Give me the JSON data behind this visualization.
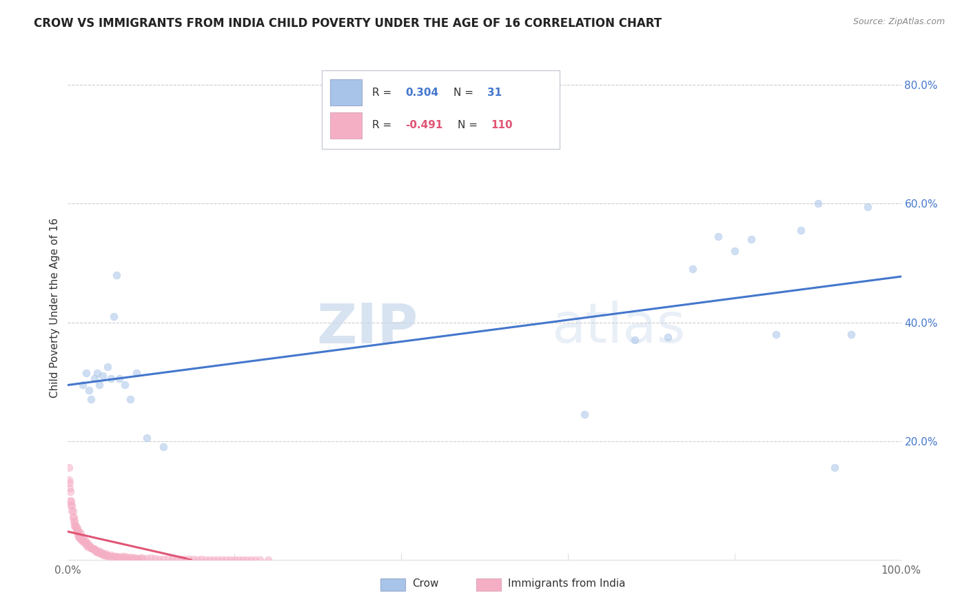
{
  "title": "CROW VS IMMIGRANTS FROM INDIA CHILD POVERTY UNDER THE AGE OF 16 CORRELATION CHART",
  "source": "Source: ZipAtlas.com",
  "ylabel": "Child Poverty Under the Age of 16",
  "xlim": [
    0.0,
    1.0
  ],
  "ylim": [
    0.0,
    0.85
  ],
  "crow_R": 0.304,
  "crow_N": 31,
  "india_R": -0.491,
  "india_N": 110,
  "crow_color": "#a8c4e8",
  "india_color": "#f5afc5",
  "crow_line_color": "#4477cc",
  "india_line_color": "#e05575",
  "grid_color": "#cccccc",
  "watermark_zip": "ZIP",
  "watermark_atlas": "atlas",
  "legend_label_crow": "Crow",
  "legend_label_india": "Immigrants from India",
  "crow_x": [
    0.018,
    0.022,
    0.025,
    0.028,
    0.032,
    0.035,
    0.038,
    0.042,
    0.048,
    0.052,
    0.055,
    0.058,
    0.062,
    0.068,
    0.075,
    0.082,
    0.095,
    0.115,
    0.62,
    0.68,
    0.72,
    0.75,
    0.78,
    0.8,
    0.82,
    0.85,
    0.88,
    0.9,
    0.92,
    0.94,
    0.96
  ],
  "crow_y": [
    0.295,
    0.315,
    0.285,
    0.27,
    0.305,
    0.315,
    0.295,
    0.31,
    0.325,
    0.305,
    0.41,
    0.48,
    0.305,
    0.295,
    0.27,
    0.315,
    0.205,
    0.19,
    0.245,
    0.37,
    0.375,
    0.49,
    0.545,
    0.52,
    0.54,
    0.38,
    0.555,
    0.6,
    0.155,
    0.38,
    0.595
  ],
  "india_x": [
    0.001,
    0.001,
    0.002,
    0.002,
    0.003,
    0.003,
    0.004,
    0.004,
    0.005,
    0.005,
    0.006,
    0.006,
    0.007,
    0.007,
    0.008,
    0.008,
    0.009,
    0.009,
    0.01,
    0.01,
    0.011,
    0.011,
    0.012,
    0.012,
    0.013,
    0.013,
    0.014,
    0.015,
    0.015,
    0.016,
    0.017,
    0.018,
    0.019,
    0.02,
    0.021,
    0.022,
    0.022,
    0.023,
    0.024,
    0.025,
    0.026,
    0.027,
    0.028,
    0.029,
    0.03,
    0.031,
    0.032,
    0.033,
    0.034,
    0.035,
    0.036,
    0.037,
    0.038,
    0.039,
    0.04,
    0.041,
    0.042,
    0.043,
    0.044,
    0.045,
    0.046,
    0.047,
    0.048,
    0.05,
    0.052,
    0.054,
    0.056,
    0.058,
    0.06,
    0.062,
    0.065,
    0.068,
    0.07,
    0.072,
    0.075,
    0.078,
    0.08,
    0.082,
    0.085,
    0.088,
    0.09,
    0.095,
    0.1,
    0.105,
    0.11,
    0.115,
    0.12,
    0.125,
    0.13,
    0.135,
    0.14,
    0.145,
    0.15,
    0.155,
    0.16,
    0.165,
    0.17,
    0.175,
    0.18,
    0.185,
    0.19,
    0.195,
    0.2,
    0.205,
    0.21,
    0.215,
    0.22,
    0.225,
    0.23,
    0.24
  ],
  "india_y": [
    0.155,
    0.135,
    0.13,
    0.12,
    0.115,
    0.1,
    0.098,
    0.092,
    0.092,
    0.082,
    0.082,
    0.072,
    0.072,
    0.065,
    0.065,
    0.058,
    0.058,
    0.055,
    0.055,
    0.048,
    0.052,
    0.048,
    0.048,
    0.042,
    0.045,
    0.038,
    0.038,
    0.045,
    0.035,
    0.035,
    0.032,
    0.035,
    0.03,
    0.032,
    0.028,
    0.03,
    0.025,
    0.028,
    0.022,
    0.025,
    0.022,
    0.022,
    0.02,
    0.02,
    0.018,
    0.018,
    0.018,
    0.015,
    0.015,
    0.012,
    0.012,
    0.015,
    0.012,
    0.01,
    0.012,
    0.01,
    0.01,
    0.008,
    0.008,
    0.01,
    0.008,
    0.008,
    0.006,
    0.006,
    0.008,
    0.006,
    0.005,
    0.005,
    0.004,
    0.004,
    0.005,
    0.005,
    0.003,
    0.003,
    0.004,
    0.003,
    0.003,
    0.002,
    0.002,
    0.003,
    0.002,
    0.002,
    0.003,
    0.002,
    0.001,
    0.001,
    0.002,
    0.001,
    0.001,
    0.001,
    0.001,
    0.001,
    0.001,
    0.0,
    0.001,
    0.0,
    0.0,
    0.0,
    0.0,
    0.0,
    0.0,
    0.0,
    0.0,
    0.0,
    0.0,
    0.0,
    0.0,
    0.0,
    0.0,
    0.0
  ],
  "title_fontsize": 12,
  "tick_fontsize": 11,
  "marker_size": 60,
  "marker_alpha": 0.55,
  "background_color": "#ffffff"
}
